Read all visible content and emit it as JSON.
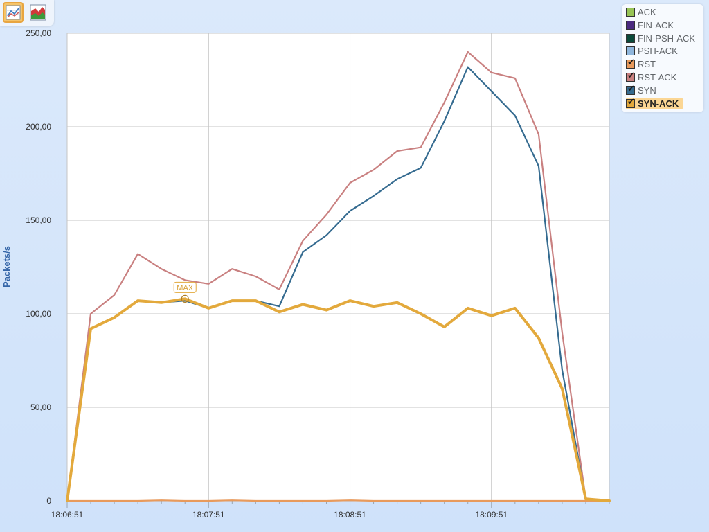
{
  "toolbar": {
    "buttons": [
      {
        "icon": "line-chart-icon",
        "active": true
      },
      {
        "icon": "area-chart-icon",
        "active": false
      }
    ]
  },
  "colors": {
    "ACK": "#98c455",
    "FIN-ACK": "#4b2a7f",
    "FIN-PSH-ACK": "#0b4a3a",
    "PSH-ACK": "#8fb6dc",
    "RST": "#e89a5c",
    "RST-ACK": "#c98080",
    "SYN": "#356b90",
    "SYN-ACK": "#e3a93c"
  },
  "legend": {
    "items": [
      {
        "label": "ACK",
        "checked": false,
        "selected": false
      },
      {
        "label": "FIN-ACK",
        "checked": false,
        "selected": false
      },
      {
        "label": "FIN-PSH-ACK",
        "checked": false,
        "selected": false
      },
      {
        "label": "PSH-ACK",
        "checked": false,
        "selected": false
      },
      {
        "label": "RST",
        "checked": true,
        "selected": false
      },
      {
        "label": "RST-ACK",
        "checked": true,
        "selected": false
      },
      {
        "label": "SYN",
        "checked": true,
        "selected": false
      },
      {
        "label": "SYN-ACK",
        "checked": true,
        "selected": true
      }
    ]
  },
  "chart_data": {
    "type": "line",
    "ylabel": "Packets/s",
    "ylim": [
      0,
      250
    ],
    "yticks": [
      0,
      50,
      100,
      150,
      200,
      250
    ],
    "ytick_labels": [
      "0",
      "50,00",
      "100,00",
      "150,00",
      "200,00",
      "250,00"
    ],
    "x_index_range": [
      0,
      23
    ],
    "xticks": [
      0,
      6,
      12,
      18
    ],
    "xtick_labels": [
      "18:06:51",
      "18:07:51",
      "18:08:51",
      "18:09:51"
    ],
    "grid": true,
    "legend_position": "top-right",
    "max_marker": {
      "label": "MAX",
      "series": "SYN-ACK",
      "index": 5,
      "value": 108
    },
    "series": [
      {
        "name": "RST",
        "color": "#e89a5c",
        "values": [
          0,
          0,
          0,
          0,
          0.3,
          0,
          0,
          0.3,
          0,
          0,
          0,
          0,
          0.3,
          0,
          0,
          0,
          0,
          0,
          0,
          0,
          0,
          0,
          0,
          0
        ]
      },
      {
        "name": "RST-ACK",
        "color": "#c98080",
        "values": [
          0,
          100,
          110,
          132,
          124,
          118,
          116,
          124,
          120,
          113,
          139,
          153,
          170,
          177,
          187,
          189,
          213,
          240,
          229,
          226,
          196,
          90,
          1,
          0
        ]
      },
      {
        "name": "SYN",
        "color": "#356b90",
        "values": [
          0,
          92,
          98,
          107,
          106,
          107,
          103,
          107,
          107,
          104,
          133,
          142,
          155,
          163,
          172,
          178,
          203,
          232,
          219,
          206,
          179,
          70,
          1,
          0
        ]
      },
      {
        "name": "SYN-ACK",
        "color": "#e3a93c",
        "values": [
          0,
          92,
          98,
          107,
          106,
          108,
          103,
          107,
          107,
          101,
          105,
          102,
          107,
          104,
          106,
          100,
          93,
          103,
          99,
          103,
          87,
          60,
          1,
          0
        ]
      }
    ]
  }
}
